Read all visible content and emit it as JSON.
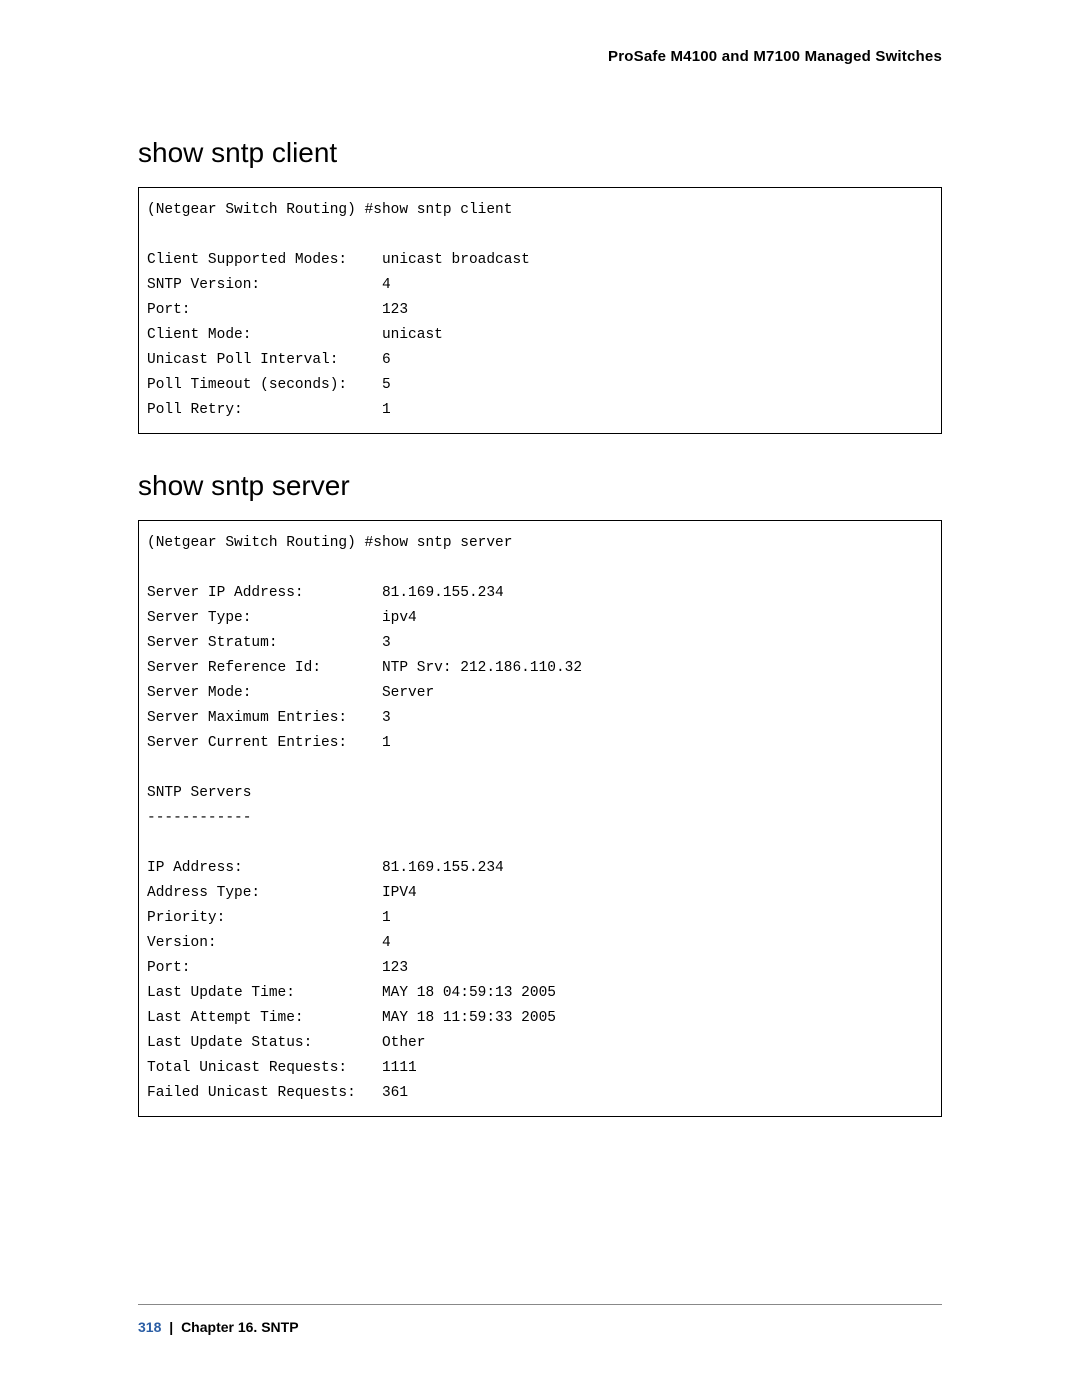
{
  "header": {
    "title": "ProSafe M4100 and M7100 Managed Switches"
  },
  "sections": [
    {
      "heading": "show sntp client",
      "command_line": "(Netgear Switch Routing) #show sntp client",
      "label_width": 27,
      "rows": [
        {
          "label": "Client Supported Modes:",
          "value": "unicast broadcast"
        },
        {
          "label": "SNTP Version:",
          "value": "4"
        },
        {
          "label": "Port:",
          "value": "123"
        },
        {
          "label": "Client Mode:",
          "value": "unicast"
        },
        {
          "label": "Unicast Poll Interval:",
          "value": "6"
        },
        {
          "label": "Poll Timeout (seconds):",
          "value": "5"
        },
        {
          "label": "Poll Retry:",
          "value": "1"
        }
      ]
    },
    {
      "heading": "show sntp server",
      "command_line": "(Netgear Switch Routing) #show sntp server",
      "label_width": 27,
      "blocks": [
        {
          "rows": [
            {
              "label": "Server IP Address:",
              "value": "81.169.155.234"
            },
            {
              "label": "Server Type:",
              "value": "ipv4"
            },
            {
              "label": "Server Stratum:",
              "value": "3"
            },
            {
              "label": "Server Reference Id:",
              "value": "NTP Srv: 212.186.110.32"
            },
            {
              "label": "Server Mode:",
              "value": "Server"
            },
            {
              "label": "Server Maximum Entries:",
              "value": "3"
            },
            {
              "label": "Server Current Entries:",
              "value": "1"
            }
          ]
        },
        {
          "plain": [
            "SNTP Servers",
            "------------"
          ]
        },
        {
          "rows": [
            {
              "label": "IP Address:",
              "value": "81.169.155.234"
            },
            {
              "label": "Address Type:",
              "value": "IPV4"
            },
            {
              "label": "Priority:",
              "value": "1"
            },
            {
              "label": "Version:",
              "value": "4"
            },
            {
              "label": "Port:",
              "value": "123"
            },
            {
              "label": "Last Update Time:",
              "value": "MAY 18 04:59:13 2005"
            },
            {
              "label": "Last Attempt Time:",
              "value": "MAY 18 11:59:33 2005"
            },
            {
              "label": "Last Update Status:",
              "value": "Other"
            },
            {
              "label": "Total Unicast Requests:",
              "value": "1111"
            },
            {
              "label": "Failed Unicast Requests:",
              "value": "361"
            }
          ]
        }
      ]
    }
  ],
  "footer": {
    "page_number": "318",
    "separator": "|",
    "chapter": "Chapter 16.  SNTP"
  }
}
